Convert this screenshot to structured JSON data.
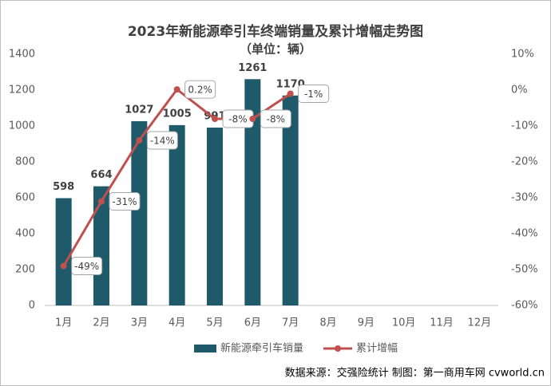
{
  "chart_data": {
    "type": "bar_line",
    "title": "2023年新能源牵引车终端销量及累计增幅走势图",
    "subtitle": "（单位：辆）",
    "categories": [
      "1月",
      "2月",
      "3月",
      "4月",
      "5月",
      "6月",
      "7月",
      "8月",
      "9月",
      "10月",
      "11月",
      "12月"
    ],
    "series": [
      {
        "name": "新能源牵引车销量",
        "type": "bar",
        "color": "#1f5a6b",
        "values": [
          598,
          664,
          1027,
          1005,
          991,
          1261,
          1170,
          null,
          null,
          null,
          null,
          null
        ]
      },
      {
        "name": "累计增幅",
        "type": "line",
        "axis": "y2",
        "color": "#c0504d",
        "values": [
          -49,
          -31,
          -14,
          0.2,
          -8,
          -8,
          -1,
          null,
          null,
          null,
          null,
          null
        ],
        "value_labels": [
          "-49%",
          "-31%",
          "-14%",
          "0.2%",
          "-8%",
          "-8%",
          "-1%",
          null,
          null,
          null,
          null,
          null
        ]
      }
    ],
    "ylim": [
      0,
      1400
    ],
    "yticks": [
      0,
      200,
      400,
      600,
      800,
      1000,
      1200,
      1400
    ],
    "y2lim": [
      -60,
      10
    ],
    "y2ticks": [
      {
        "value": -60,
        "label": "-60%"
      },
      {
        "value": -50,
        "label": "-50%"
      },
      {
        "value": -40,
        "label": "-40%"
      },
      {
        "value": -30,
        "label": "-30%"
      },
      {
        "value": -20,
        "label": "-20%"
      },
      {
        "value": -10,
        "label": "-10%"
      },
      {
        "value": 0,
        "label": "0%"
      },
      {
        "value": 10,
        "label": "10%"
      }
    ],
    "grid": false,
    "legend": "bottom",
    "source": "数据来源：交强险统计  制图：第一商用车网 cvworld.cn"
  }
}
